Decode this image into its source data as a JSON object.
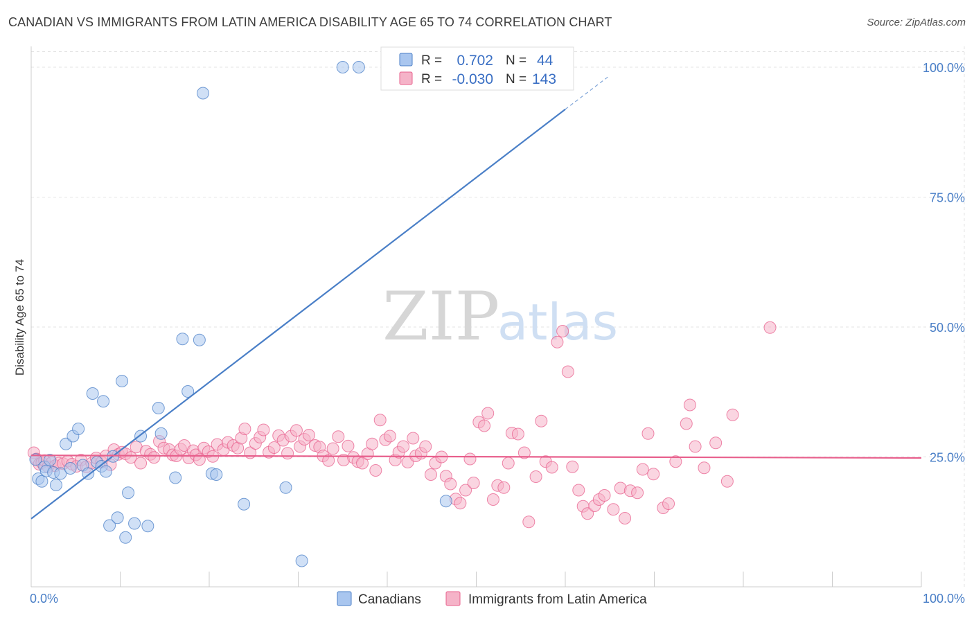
{
  "header": {
    "title": "CANADIAN VS IMMIGRANTS FROM LATIN AMERICA DISABILITY AGE 65 TO 74 CORRELATION CHART",
    "source": "Source: ZipAtlas.com"
  },
  "watermark": {
    "zip": "ZIP",
    "atlas": "atlas"
  },
  "legend": {
    "rows": [
      {
        "r_label": "R =",
        "r_value": "0.702",
        "n_label": "N =",
        "n_value": "44",
        "color": "#a9c6ef"
      },
      {
        "r_label": "R =",
        "r_value": "-0.030",
        "n_label": "N =",
        "n_value": "143",
        "color": "#f5b3c8"
      }
    ]
  },
  "bottom_legend": {
    "items": [
      {
        "label": "Canadians",
        "color": "#a9c6ef"
      },
      {
        "label": "Immigrants from Latin America",
        "color": "#f5b3c8"
      }
    ]
  },
  "chart_data": {
    "type": "scatter",
    "xlabel": "",
    "ylabel": "Disability Age 65 to 74",
    "xlim": [
      0,
      100
    ],
    "ylim": [
      0,
      104
    ],
    "x_tick_labels": [
      {
        "value": 0,
        "label": "0.0%"
      },
      {
        "value": 100,
        "label": "100.0%"
      }
    ],
    "y_tick_labels": [
      {
        "value": 25,
        "label": "25.0%"
      },
      {
        "value": 50,
        "label": "50.0%"
      },
      {
        "value": 75,
        "label": "75.0%"
      },
      {
        "value": 100,
        "label": "100.0%"
      }
    ],
    "x_minor_ticks": [
      0,
      10,
      20,
      30,
      40,
      50,
      60,
      70,
      80,
      90,
      100
    ],
    "grid": true,
    "colors": {
      "canadians": "#4a7fc7",
      "canadians_fill": "#a9c6ef",
      "latin": "#e8608d",
      "latin_fill": "#f5b3c8"
    },
    "series": [
      {
        "key": "canadians",
        "points": [
          [
            0.5,
            24.5
          ],
          [
            0.8,
            20.8
          ],
          [
            1.2,
            20.3
          ],
          [
            1.5,
            23.1
          ],
          [
            1.7,
            22.3
          ],
          [
            2.1,
            24.4
          ],
          [
            2.5,
            22.0
          ],
          [
            2.8,
            19.6
          ],
          [
            3.3,
            21.8
          ],
          [
            3.9,
            27.5
          ],
          [
            4.4,
            22.8
          ],
          [
            4.7,
            29.0
          ],
          [
            5.3,
            30.4
          ],
          [
            5.8,
            23.4
          ],
          [
            6.4,
            21.8
          ],
          [
            6.9,
            37.2
          ],
          [
            7.4,
            24.0
          ],
          [
            7.9,
            23.2
          ],
          [
            8.1,
            35.7
          ],
          [
            8.4,
            22.2
          ],
          [
            8.8,
            11.8
          ],
          [
            9.2,
            25.1
          ],
          [
            9.7,
            13.3
          ],
          [
            10.2,
            39.6
          ],
          [
            10.6,
            9.5
          ],
          [
            10.9,
            18.1
          ],
          [
            11.6,
            12.2
          ],
          [
            12.3,
            29.0
          ],
          [
            13.1,
            11.7
          ],
          [
            14.3,
            34.4
          ],
          [
            14.6,
            29.5
          ],
          [
            16.2,
            21.0
          ],
          [
            17.0,
            47.7
          ],
          [
            17.6,
            37.6
          ],
          [
            18.9,
            47.5
          ],
          [
            19.3,
            95.0
          ],
          [
            20.3,
            21.8
          ],
          [
            20.8,
            21.6
          ],
          [
            23.9,
            15.9
          ],
          [
            28.6,
            19.1
          ],
          [
            30.4,
            5.0
          ],
          [
            35.0,
            100.0
          ],
          [
            36.8,
            100.0
          ],
          [
            46.6,
            16.5
          ]
        ]
      },
      {
        "key": "latin",
        "points": [
          [
            0.3,
            25.8
          ],
          [
            0.6,
            24.6
          ],
          [
            0.9,
            23.6
          ],
          [
            1.2,
            23.9
          ],
          [
            1.5,
            24.3
          ],
          [
            1.9,
            23.1
          ],
          [
            2.3,
            23.9
          ],
          [
            2.7,
            23.3
          ],
          [
            3.1,
            23.8
          ],
          [
            3.6,
            23.7
          ],
          [
            4.1,
            24.2
          ],
          [
            4.6,
            23.6
          ],
          [
            5.1,
            23.2
          ],
          [
            5.6,
            24.4
          ],
          [
            6.2,
            23.1
          ],
          [
            6.8,
            23.8
          ],
          [
            7.3,
            24.8
          ],
          [
            7.9,
            24.0
          ],
          [
            8.4,
            25.2
          ],
          [
            8.9,
            23.5
          ],
          [
            9.3,
            26.4
          ],
          [
            9.8,
            25.5
          ],
          [
            10.2,
            25.9
          ],
          [
            10.6,
            25.6
          ],
          [
            11.2,
            24.9
          ],
          [
            11.8,
            26.9
          ],
          [
            12.3,
            23.8
          ],
          [
            12.9,
            26.1
          ],
          [
            13.4,
            25.5
          ],
          [
            13.8,
            24.9
          ],
          [
            14.4,
            28.0
          ],
          [
            14.9,
            26.7
          ],
          [
            15.5,
            26.4
          ],
          [
            15.9,
            25.4
          ],
          [
            16.3,
            25.2
          ],
          [
            16.8,
            26.5
          ],
          [
            17.2,
            27.2
          ],
          [
            17.7,
            24.8
          ],
          [
            18.2,
            26.2
          ],
          [
            18.5,
            25.4
          ],
          [
            18.9,
            24.5
          ],
          [
            19.4,
            26.7
          ],
          [
            19.9,
            26.0
          ],
          [
            20.4,
            25.1
          ],
          [
            20.9,
            27.4
          ],
          [
            21.6,
            26.4
          ],
          [
            22.1,
            27.8
          ],
          [
            22.7,
            27.2
          ],
          [
            23.2,
            26.7
          ],
          [
            23.6,
            28.6
          ],
          [
            24.0,
            30.4
          ],
          [
            24.6,
            25.8
          ],
          [
            25.2,
            27.6
          ],
          [
            25.7,
            28.8
          ],
          [
            26.1,
            30.2
          ],
          [
            26.7,
            25.9
          ],
          [
            27.3,
            26.8
          ],
          [
            27.8,
            29.1
          ],
          [
            28.3,
            28.2
          ],
          [
            28.8,
            25.7
          ],
          [
            29.2,
            29.0
          ],
          [
            29.8,
            30.1
          ],
          [
            30.2,
            27.0
          ],
          [
            30.7,
            28.4
          ],
          [
            31.2,
            29.2
          ],
          [
            31.9,
            27.2
          ],
          [
            32.4,
            26.9
          ],
          [
            32.8,
            25.2
          ],
          [
            33.4,
            24.3
          ],
          [
            33.9,
            26.6
          ],
          [
            34.5,
            28.9
          ],
          [
            35.1,
            24.4
          ],
          [
            35.6,
            27.1
          ],
          [
            36.2,
            24.9
          ],
          [
            36.7,
            24.1
          ],
          [
            37.2,
            23.8
          ],
          [
            37.8,
            25.6
          ],
          [
            38.3,
            27.5
          ],
          [
            38.7,
            22.4
          ],
          [
            39.2,
            32.1
          ],
          [
            39.8,
            28.3
          ],
          [
            40.3,
            29.0
          ],
          [
            40.9,
            24.4
          ],
          [
            41.3,
            25.9
          ],
          [
            41.8,
            27.0
          ],
          [
            42.3,
            24.0
          ],
          [
            42.9,
            28.6
          ],
          [
            43.2,
            25.2
          ],
          [
            43.8,
            25.7
          ],
          [
            44.3,
            27.0
          ],
          [
            44.9,
            21.6
          ],
          [
            45.4,
            23.8
          ],
          [
            46.1,
            25.0
          ],
          [
            46.6,
            21.3
          ],
          [
            47.1,
            19.8
          ],
          [
            47.7,
            16.9
          ],
          [
            48.2,
            16.1
          ],
          [
            48.8,
            18.6
          ],
          [
            49.3,
            24.6
          ],
          [
            49.7,
            20.0
          ],
          [
            50.3,
            31.7
          ],
          [
            50.9,
            31.0
          ],
          [
            51.3,
            33.4
          ],
          [
            51.9,
            16.8
          ],
          [
            52.4,
            19.5
          ],
          [
            53.1,
            19.1
          ],
          [
            53.6,
            23.8
          ],
          [
            54.0,
            29.6
          ],
          [
            54.7,
            29.4
          ],
          [
            55.4,
            25.8
          ],
          [
            55.9,
            12.5
          ],
          [
            56.7,
            21.2
          ],
          [
            57.3,
            31.9
          ],
          [
            57.8,
            24.1
          ],
          [
            58.5,
            23.0
          ],
          [
            59.1,
            47.1
          ],
          [
            59.7,
            49.2
          ],
          [
            60.3,
            41.4
          ],
          [
            60.8,
            23.1
          ],
          [
            61.5,
            18.6
          ],
          [
            62.0,
            15.5
          ],
          [
            62.5,
            14.1
          ],
          [
            63.3,
            15.6
          ],
          [
            63.8,
            16.8
          ],
          [
            64.4,
            17.6
          ],
          [
            65.4,
            14.9
          ],
          [
            66.2,
            19.0
          ],
          [
            66.7,
            13.2
          ],
          [
            67.3,
            18.5
          ],
          [
            68.1,
            18.1
          ],
          [
            68.7,
            22.6
          ],
          [
            69.3,
            29.5
          ],
          [
            69.9,
            21.7
          ],
          [
            71.0,
            15.2
          ],
          [
            71.6,
            16.0
          ],
          [
            72.4,
            24.1
          ],
          [
            73.6,
            31.4
          ],
          [
            74.0,
            35.0
          ],
          [
            74.6,
            27.0
          ],
          [
            75.6,
            22.9
          ],
          [
            76.9,
            27.7
          ],
          [
            78.2,
            20.3
          ],
          [
            78.8,
            33.1
          ],
          [
            83.0,
            49.9
          ]
        ]
      }
    ],
    "trend_lines": [
      {
        "key": "canadians",
        "from": [
          0,
          13.1
        ],
        "to": [
          60.0,
          91.9
        ],
        "dashed_to": [
          65.0,
          98.4
        ]
      },
      {
        "key": "latin",
        "from": [
          0,
          25.3
        ],
        "to": [
          100,
          24.8
        ]
      }
    ]
  }
}
